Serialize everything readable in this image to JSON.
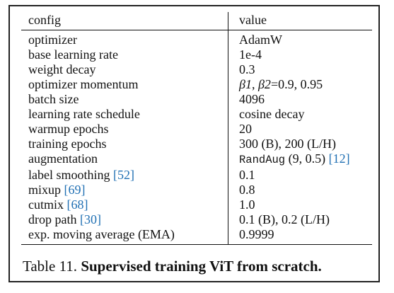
{
  "table": {
    "headers": {
      "config": "config",
      "value": "value"
    },
    "rows": [
      {
        "config": "optimizer",
        "value": "AdamW"
      },
      {
        "config": "base learning rate",
        "value": "1e-4"
      },
      {
        "config": "weight decay",
        "value": "0.3"
      },
      {
        "config": "optimizer momentum",
        "value_beta1": "β1",
        "value_beta2": "β2",
        "value_rest": "=0.9, 0.95"
      },
      {
        "config": "batch size",
        "value": "4096"
      },
      {
        "config": "learning rate schedule",
        "value": "cosine decay"
      },
      {
        "config": "warmup epochs",
        "value": "20"
      },
      {
        "config": "training epochs",
        "value": "300 (B), 200 (L/H)"
      },
      {
        "config": "augmentation",
        "value_code": "RandAug",
        "value_rest": " (9, 0.5) ",
        "cite": "[12]"
      },
      {
        "config": "label smoothing",
        "cite": "[52]",
        "value": "0.1"
      },
      {
        "config": "mixup",
        "cite": "[69]",
        "value": "0.8"
      },
      {
        "config": "cutmix",
        "cite": "[68]",
        "value": "1.0"
      },
      {
        "config": "drop path",
        "cite": "[30]",
        "value": "0.1 (B), 0.2 (L/H)"
      },
      {
        "config": "exp. moving average (EMA)",
        "value": "0.9999"
      }
    ]
  },
  "caption": {
    "label": "Table 11.",
    "title": "Supervised training ViT from scratch."
  }
}
